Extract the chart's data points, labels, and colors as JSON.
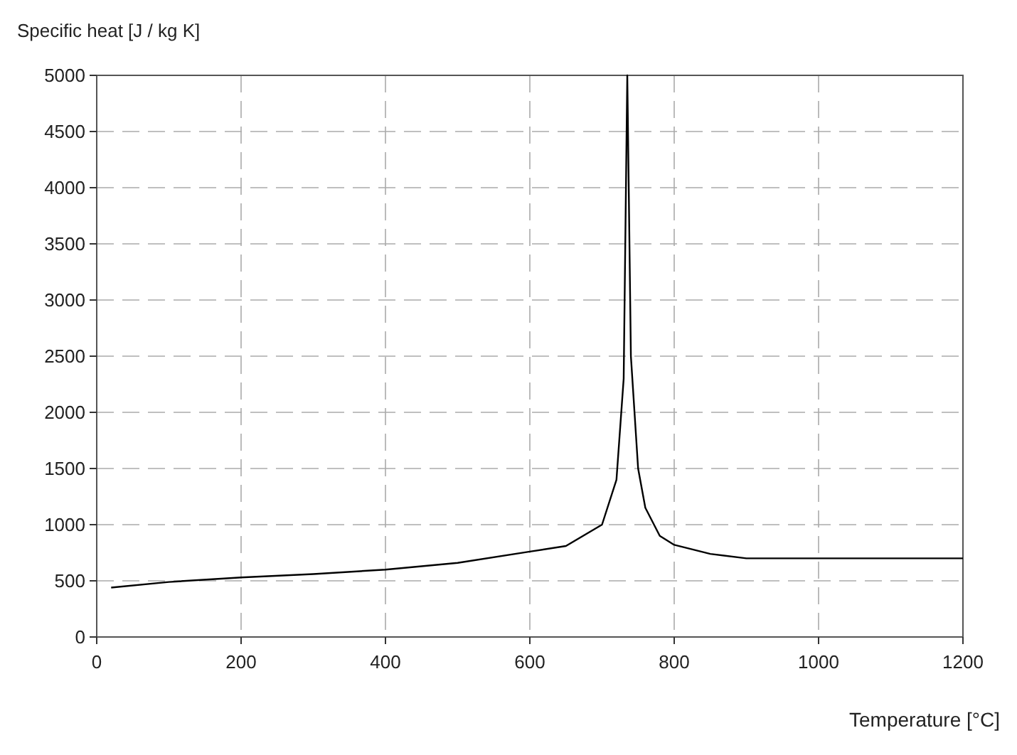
{
  "chart_data": {
    "type": "line",
    "ylabel": "Specific heat [J / kg K]",
    "xlabel": "Temperature [°C]",
    "x": [
      20,
      100,
      200,
      300,
      400,
      500,
      600,
      650,
      700,
      720,
      730,
      735,
      740,
      750,
      760,
      780,
      800,
      850,
      900,
      1200
    ],
    "series": [
      {
        "color": "#000000",
        "values": [
          440,
          490,
          530,
          560,
          600,
          660,
          760,
          810,
          1000,
          1400,
          2300,
          5000,
          2500,
          1500,
          1150,
          900,
          820,
          740,
          700,
          700
        ]
      }
    ],
    "xlim": [
      0,
      1200
    ],
    "xticks": [
      0,
      200,
      400,
      600,
      800,
      1000,
      1200
    ],
    "ylim": [
      0,
      5000
    ],
    "yticks": [
      0,
      500,
      1000,
      1500,
      2000,
      2500,
      3000,
      3500,
      4000,
      4500,
      5000
    ],
    "grid": true,
    "marker": "none",
    "line_style": "solid"
  }
}
